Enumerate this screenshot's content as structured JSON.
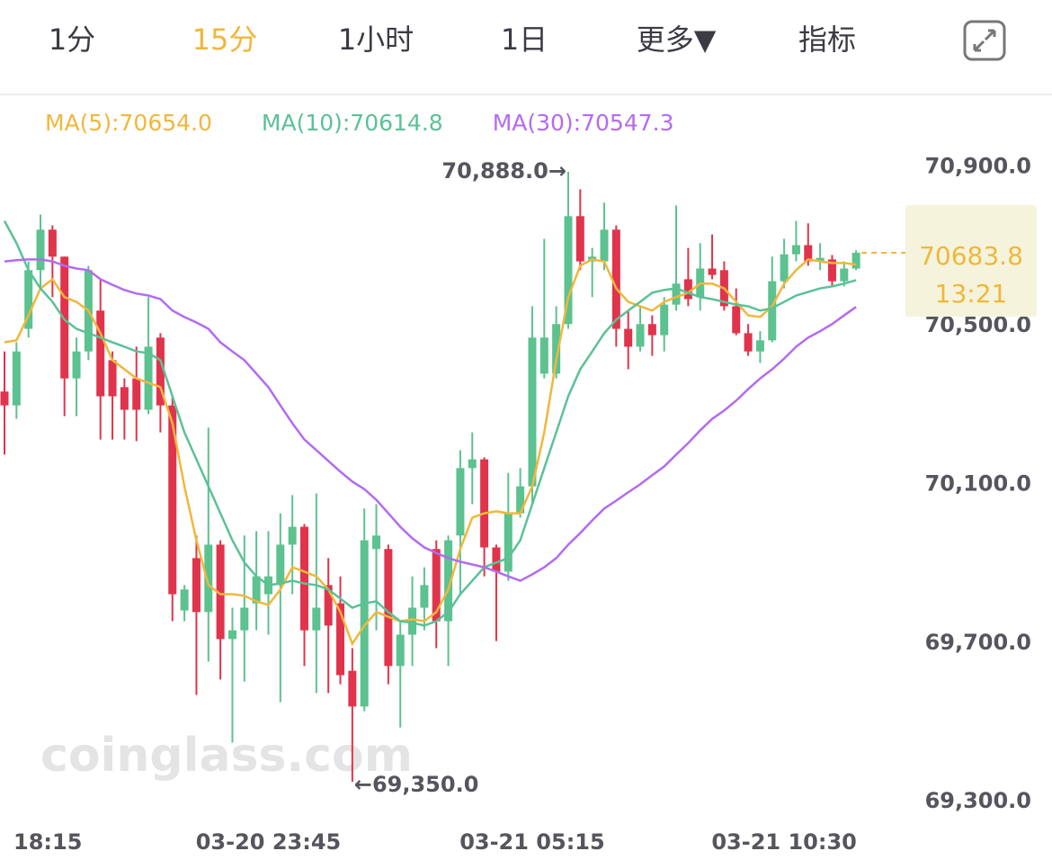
{
  "tabs": [
    {
      "label": "1分"
    },
    {
      "label": "15分"
    },
    {
      "label": "1小时"
    },
    {
      "label": "1日"
    },
    {
      "label": "更多▼"
    },
    {
      "label": "指标"
    }
  ],
  "selected_tab": 1,
  "selected_color": "#f0b73c",
  "watermark": "coinglass.com",
  "chart_data": {
    "type": "candlestick",
    "categories": [
      "18:15",
      null,
      null,
      null,
      null,
      null,
      null,
      null,
      null,
      null,
      null,
      null,
      null,
      null,
      null,
      null,
      null,
      null,
      null,
      null,
      null,
      null,
      "03-20 23:45",
      null,
      null,
      null,
      null,
      null,
      null,
      null,
      null,
      null,
      null,
      null,
      null,
      null,
      null,
      null,
      null,
      null,
      null,
      null,
      null,
      null,
      "03-21 05:15",
      null,
      null,
      null,
      null,
      null,
      null,
      null,
      null,
      null,
      null,
      null,
      null,
      null,
      null,
      null,
      null,
      null,
      null,
      null,
      null,
      "03-21 10:30",
      null,
      null,
      null,
      null,
      null,
      null
    ],
    "open": [
      70334,
      70299,
      70492,
      70640,
      70742,
      70674,
      70367,
      70435,
      70538,
      70413,
      70345,
      70367,
      70288,
      70470,
      70299,
      69782,
      69914,
      69778,
      69948,
      69710,
      69732,
      69800,
      69823,
      69846,
      69948,
      69993,
      69732,
      69846,
      69800,
      69630,
      69540,
      69937,
      69937,
      69642,
      69721,
      69789,
      69937,
      69755,
      69971,
      70141,
      70163,
      69941,
      69880,
      70027,
      70095,
      70379,
      70379,
      70504,
      70776,
      70662,
      70662,
      70742,
      70492,
      70447,
      70504,
      70476,
      70553,
      70617,
      70572,
      70644,
      70640,
      70549,
      70481,
      70435,
      70463,
      70612,
      70680,
      70703,
      70662,
      70667,
      70612,
      70644
    ],
    "close": [
      70299,
      70435,
      70640,
      70742,
      70674,
      70367,
      70435,
      70640,
      70322,
      70322,
      70288,
      70288,
      70447,
      70299,
      69823,
      69835,
      69778,
      69948,
      69710,
      69732,
      69789,
      69868,
      69868,
      69948,
      69993,
      69732,
      69789,
      69744,
      69619,
      69540,
      69959,
      69971,
      69642,
      69721,
      69789,
      69846,
      69755,
      69959,
      70141,
      70163,
      69941,
      69880,
      70027,
      70095,
      70470,
      70470,
      70504,
      70776,
      70662,
      70674,
      70742,
      70492,
      70447,
      70504,
      70476,
      70553,
      70606,
      70567,
      70644,
      70628,
      70549,
      70481,
      70435,
      70463,
      70612,
      70680,
      70703,
      70662,
      70671,
      70612,
      70644,
      70683.8
    ],
    "high": [
      70435,
      70458,
      70662,
      70780,
      70753,
      70674,
      70470,
      70651,
      70617,
      70435,
      70367,
      70447,
      70572,
      70481,
      70322,
      69846,
      69971,
      70243,
      69959,
      69789,
      69971,
      69982,
      69982,
      70027,
      70073,
      70000,
      70077,
      69914,
      69868,
      69687,
      70039,
      70050,
      69948,
      69755,
      69868,
      69891,
      69959,
      69971,
      70186,
      70231,
      70168,
      69948,
      70129,
      70141,
      70549,
      70719,
      70549,
      70888,
      70844,
      70696,
      70810,
      70753,
      70538,
      70549,
      70526,
      70572,
      70803,
      70696,
      70708,
      70730,
      70662,
      70594,
      70504,
      70486,
      70674,
      70719,
      70764,
      70758,
      70708,
      70678,
      70662,
      70690
    ],
    "low": [
      70175,
      70265,
      70470,
      70594,
      70572,
      70272,
      70272,
      70413,
      70213,
      70213,
      70213,
      70209,
      70277,
      70231,
      69755,
      69755,
      69569,
      69653,
      69608,
      69449,
      69603,
      69732,
      69721,
      69551,
      69823,
      69642,
      69574,
      69574,
      69596,
      69350,
      69528,
      69732,
      69596,
      69487,
      69642,
      69732,
      69687,
      69642,
      69823,
      70050,
      69868,
      69705,
      69857,
      70016,
      70050,
      70367,
      70367,
      70492,
      70640,
      70572,
      70640,
      70447,
      70390,
      70435,
      70424,
      70435,
      70538,
      70549,
      70538,
      70617,
      70538,
      70476,
      70424,
      70406,
      70458,
      70594,
      70662,
      70651,
      70640,
      70599,
      70599,
      70640
    ],
    "up_color": "#5cc28f",
    "down_color": "#e0344c",
    "series": [
      {
        "name": "MA(5):70654.0",
        "color": "#f0b73c",
        "values": [
          70458,
          70463,
          70526,
          70594,
          70617,
          70572,
          70560,
          70538,
          70481,
          70413,
          70390,
          70367,
          70356,
          70345,
          70254,
          70095,
          69959,
          69846,
          69823,
          69823,
          69819,
          69805,
          69796,
          69835,
          69891,
          69880,
          69868,
          69835,
          69778,
          69698,
          69744,
          69778,
          69766,
          69755,
          69760,
          69755,
          69778,
          69835,
          69937,
          70016,
          70027,
          70032,
          70027,
          70027,
          70095,
          70231,
          70413,
          70572,
          70651,
          70667,
          70662,
          70594,
          70560,
          70549,
          70538,
          70560,
          70572,
          70583,
          70606,
          70606,
          70594,
          70560,
          70526,
          70522,
          70549,
          70606,
          70640,
          70667,
          70662,
          70658,
          70658,
          70654.0
        ]
      },
      {
        "name": "MA(10):70614.8",
        "color": "#5cc197",
        "values": [
          70764,
          70708,
          70640,
          70594,
          70560,
          70515,
          70492,
          70481,
          70470,
          70458,
          70447,
          70435,
          70431,
          70413,
          70322,
          70231,
          70163,
          70095,
          70027,
          69959,
          69903,
          69868,
          69846,
          69850,
          69857,
          69850,
          69846,
          69835,
          69812,
          69789,
          69800,
          69805,
          69778,
          69755,
          69751,
          69744,
          69755,
          69778,
          69823,
          69857,
          69891,
          69903,
          69914,
          69959,
          70050,
          70141,
          70231,
          70322,
          70390,
          70435,
          70481,
          70515,
          70538,
          70560,
          70583,
          70590,
          70594,
          70583,
          70572,
          70567,
          70560,
          70553,
          70549,
          70538,
          70544,
          70560,
          70576,
          70585,
          70594,
          70599,
          70606,
          70614.8
        ]
      },
      {
        "name": "MA(30):70547.3",
        "color": "#b36bf0",
        "values": [
          70662,
          70665,
          70667,
          70667,
          70662,
          70651,
          70644,
          70640,
          70617,
          70603,
          70590,
          70581,
          70576,
          70567,
          70538,
          70522,
          70508,
          70492,
          70458,
          70435,
          70413,
          70379,
          70345,
          70299,
          70254,
          70213,
          70186,
          70159,
          70132,
          70107,
          70088,
          70061,
          70027,
          69993,
          69964,
          69941,
          69927,
          69914,
          69905,
          69898,
          69891,
          69880,
          69868,
          69857,
          69873,
          69891,
          69914,
          69948,
          69977,
          70009,
          70039,
          70059,
          70080,
          70100,
          70123,
          70145,
          70175,
          70204,
          70236,
          70265,
          70286,
          70311,
          70340,
          70367,
          70390,
          70417,
          70447,
          70470,
          70486,
          70504,
          70526,
          70547.3
        ]
      }
    ],
    "ylim": [
      69280,
      70940
    ],
    "yticks": [
      {
        "value": 70900,
        "label": "70,900.0"
      },
      {
        "value": 70500,
        "label": "70,500.0"
      },
      {
        "value": 70100,
        "label": "70,100.0"
      },
      {
        "value": 69700,
        "label": "69,700.0"
      },
      {
        "value": 69300,
        "label": "69,300.0"
      }
    ],
    "high_label": {
      "value": 70888,
      "label": "70,888.0→"
    },
    "low_label": {
      "value": 69350,
      "label": "←69,350.0"
    },
    "last_price": {
      "value": 70683.8,
      "label": "70683.8"
    },
    "countdown": "13:21",
    "last_box_color": "#f6f3dc"
  }
}
